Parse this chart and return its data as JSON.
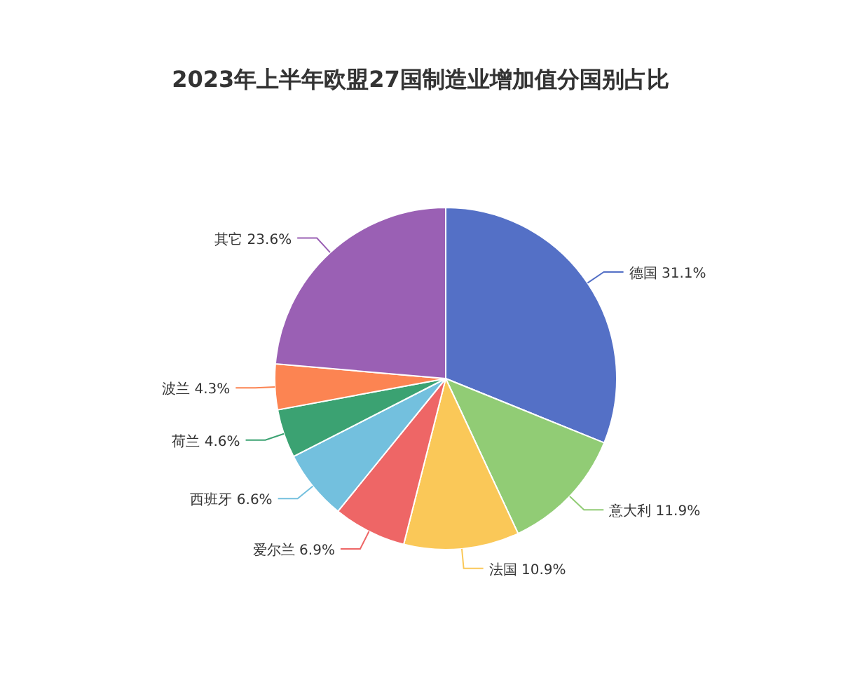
{
  "chart_data": {
    "type": "pie",
    "title": "2023年上半年欧盟27国制造业增加值分国别占比",
    "categories": [
      "德国",
      "意大利",
      "法国",
      "爱尔兰",
      "西班牙",
      "荷兰",
      "波兰",
      "其它"
    ],
    "values": [
      31.1,
      11.9,
      10.9,
      6.9,
      6.6,
      4.6,
      4.3,
      23.6
    ],
    "value_labels": [
      "31.1%",
      "11.9%",
      "10.9%",
      "6.9%",
      "6.6%",
      "4.6%",
      "4.3%",
      "23.6%"
    ],
    "colors": [
      "#5470c6",
      "#91cc75",
      "#fac858",
      "#ee6666",
      "#73c0de",
      "#3ba272",
      "#fc8452",
      "#9a60b4"
    ]
  }
}
